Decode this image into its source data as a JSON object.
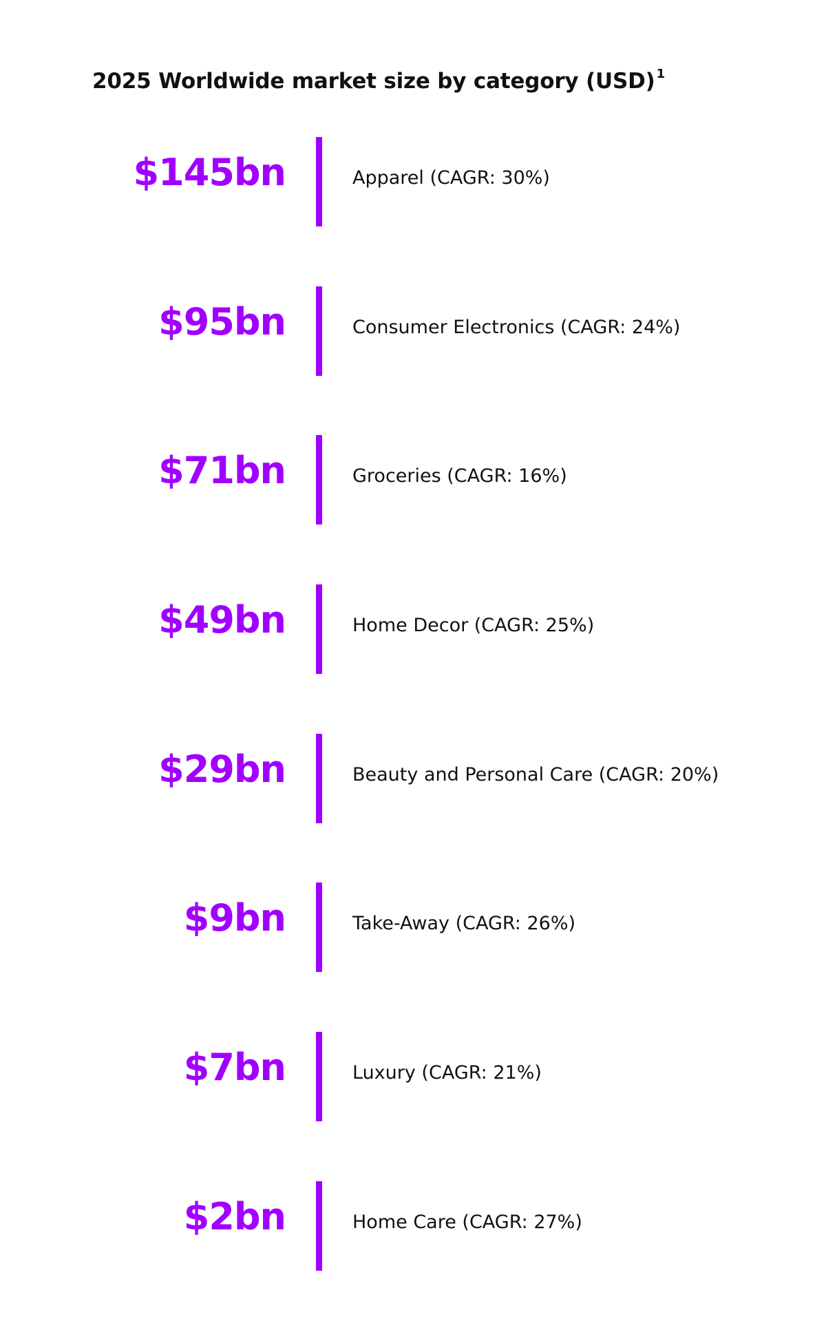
{
  "title": "2025 Worldwide market size by category (USD)",
  "title_footnote": "1",
  "chart_data": {
    "type": "table",
    "title": "2025 Worldwide market size by category (USD)",
    "unit": "USD bn",
    "accent_color": "#a100ff",
    "categories": [
      "Apparel",
      "Consumer Electronics",
      "Groceries",
      "Home Decor",
      "Beauty and Personal Care",
      "Take-Away",
      "Luxury",
      "Home Care"
    ],
    "values": [
      145,
      95,
      71,
      49,
      29,
      9,
      7,
      2
    ],
    "cagr_percent": [
      30,
      24,
      16,
      25,
      20,
      26,
      21,
      27
    ],
    "rows": [
      {
        "value_label": "$145bn",
        "category_label": "Apparel (CAGR: 30%)"
      },
      {
        "value_label": "$95bn",
        "category_label": "Consumer Electronics (CAGR: 24%)"
      },
      {
        "value_label": "$71bn",
        "category_label": "Groceries (CAGR: 16%)"
      },
      {
        "value_label": "$49bn",
        "category_label": "Home Decor (CAGR: 25%)"
      },
      {
        "value_label": "$29bn",
        "category_label": "Beauty and Personal Care (CAGR: 20%)"
      },
      {
        "value_label": "$9bn",
        "category_label": "Take-Away (CAGR: 26%)"
      },
      {
        "value_label": "$7bn",
        "category_label": "Luxury (CAGR: 21%)"
      },
      {
        "value_label": "$2bn",
        "category_label": "Home Care (CAGR: 27%)"
      }
    ]
  }
}
